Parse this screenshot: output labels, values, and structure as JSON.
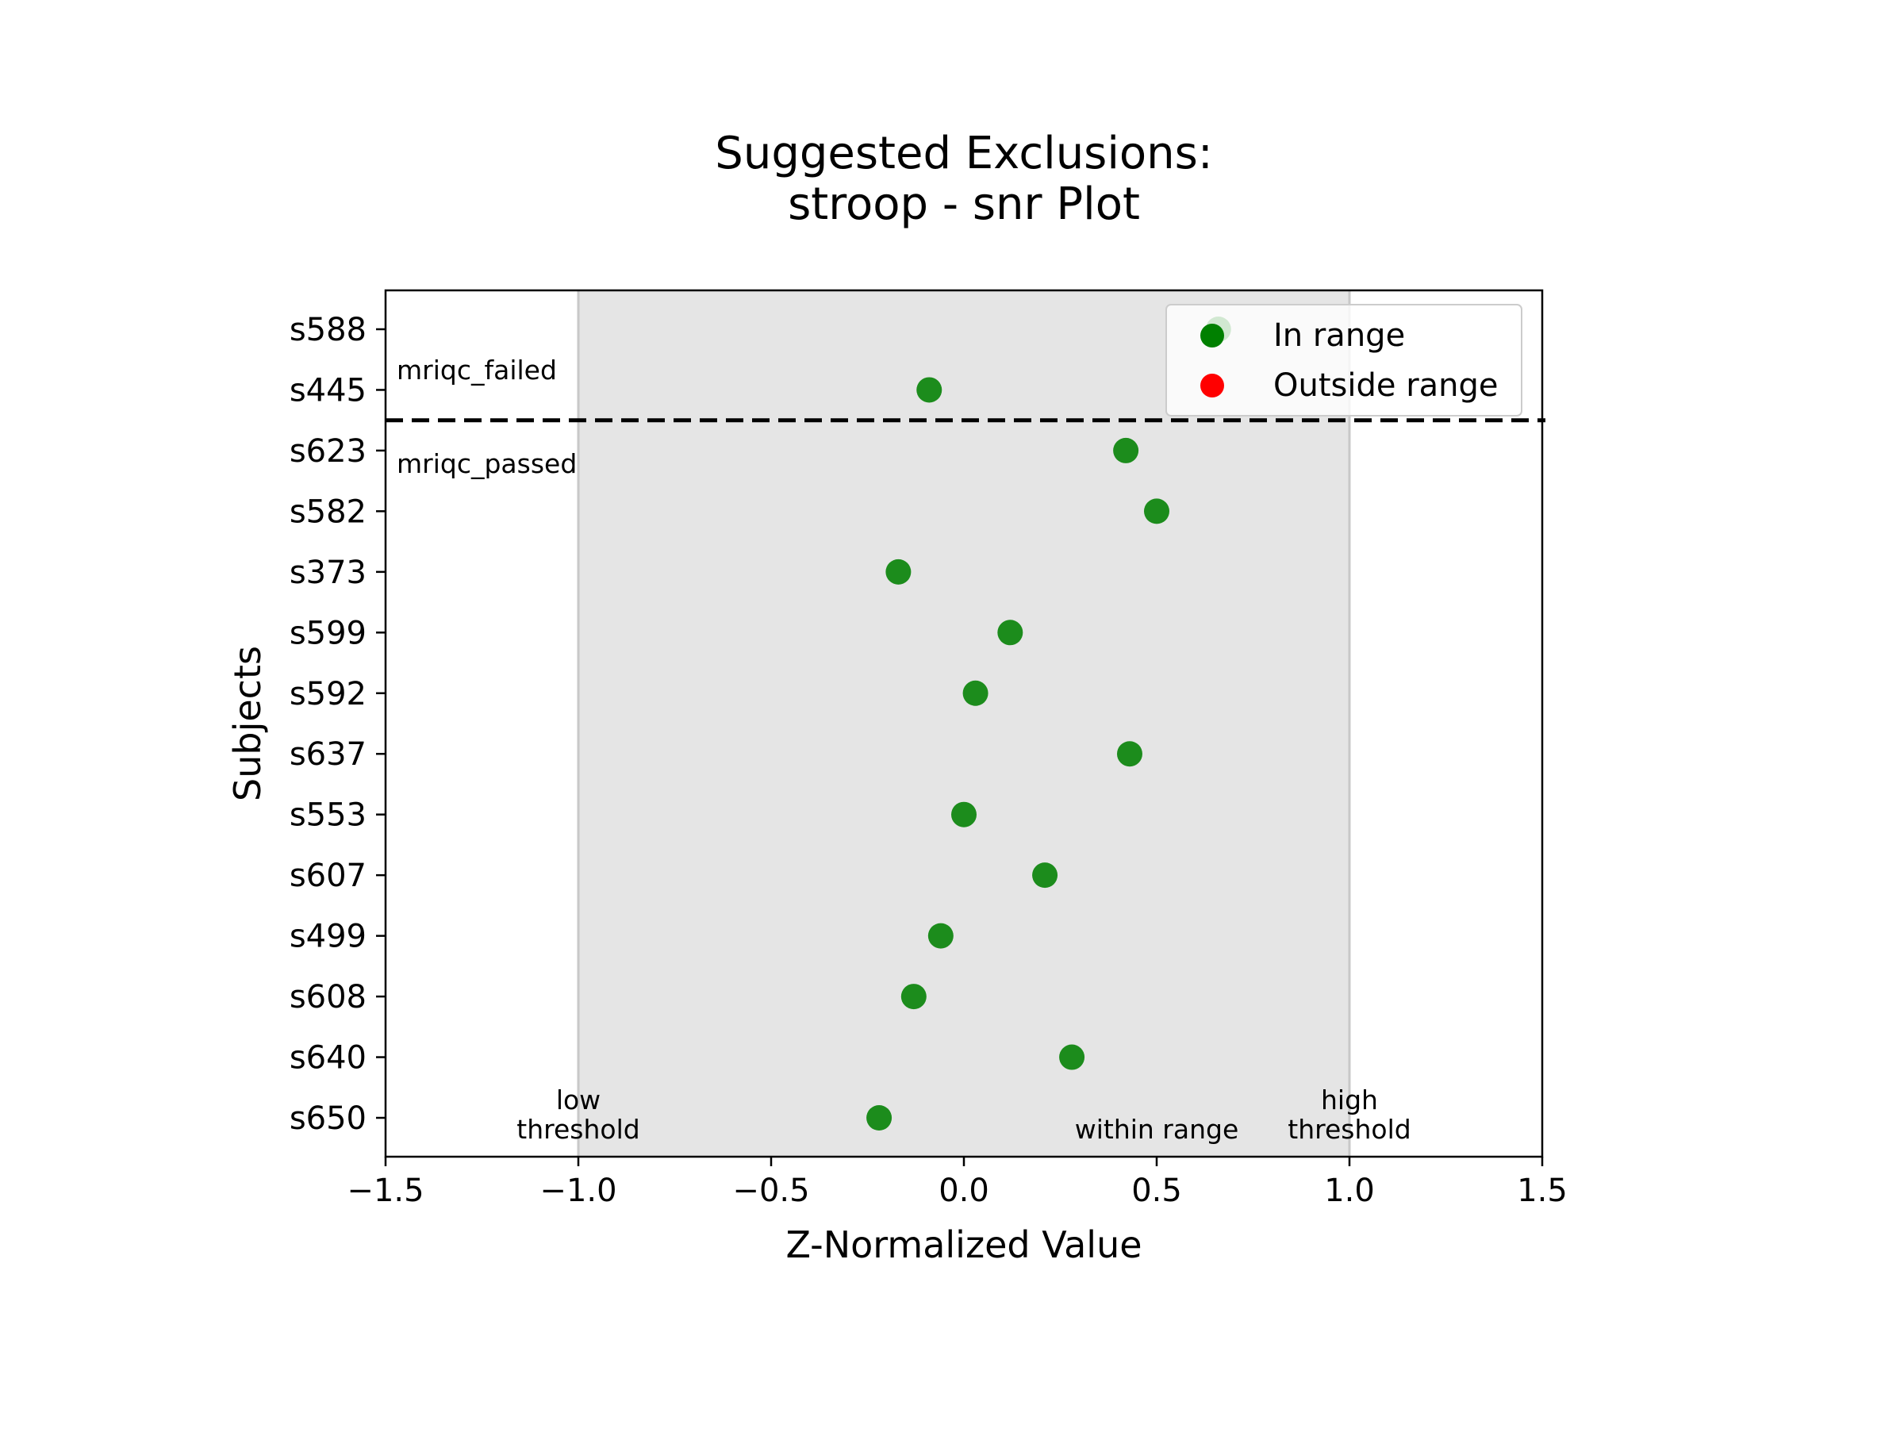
{
  "chart_data": {
    "type": "scatter",
    "title_line1": "Suggested Exclusions:",
    "title_line2": "stroop - snr Plot",
    "xlabel": "Z-Normalized Value",
    "ylabel": "Subjects",
    "xlim": [
      -1.5,
      1.5
    ],
    "xticks": [
      "−1.5",
      "−1.0",
      "−0.5",
      "0.0",
      "0.5",
      "1.0",
      "1.5"
    ],
    "xtick_values": [
      -1.5,
      -1.0,
      -0.5,
      0.0,
      0.5,
      1.0,
      1.5
    ],
    "subjects": [
      "s588",
      "s445",
      "s623",
      "s582",
      "s373",
      "s599",
      "s592",
      "s637",
      "s553",
      "s607",
      "s499",
      "s608",
      "s640",
      "s650"
    ],
    "values": [
      0.66,
      -0.09,
      0.42,
      0.5,
      -0.17,
      0.12,
      0.03,
      0.43,
      0.0,
      0.21,
      -0.06,
      -0.13,
      0.28,
      -0.22
    ],
    "status": [
      "in",
      "in",
      "in",
      "in",
      "in",
      "in",
      "in",
      "in",
      "in",
      "in",
      "in",
      "in",
      "in",
      "in"
    ],
    "threshold_low": -1.0,
    "threshold_high": 1.0,
    "group_divider_after_index": 1,
    "annotations": {
      "mriqc_failed": "mriqc_failed",
      "mriqc_passed": "mriqc_passed",
      "low_threshold_1": "low",
      "low_threshold_2": "threshold",
      "high_threshold_1": "high",
      "high_threshold_2": "threshold",
      "within_range": "within range"
    },
    "legend": {
      "position": "top-right",
      "items": [
        {
          "label": "In range",
          "color": "#008000"
        },
        {
          "label": "Outside range",
          "color": "#ff0000"
        }
      ]
    },
    "colors": {
      "in_range": "#008000",
      "outside_range": "#ff0000",
      "band": "#e5e5e5",
      "divider": "#000000"
    },
    "grid": false
  }
}
